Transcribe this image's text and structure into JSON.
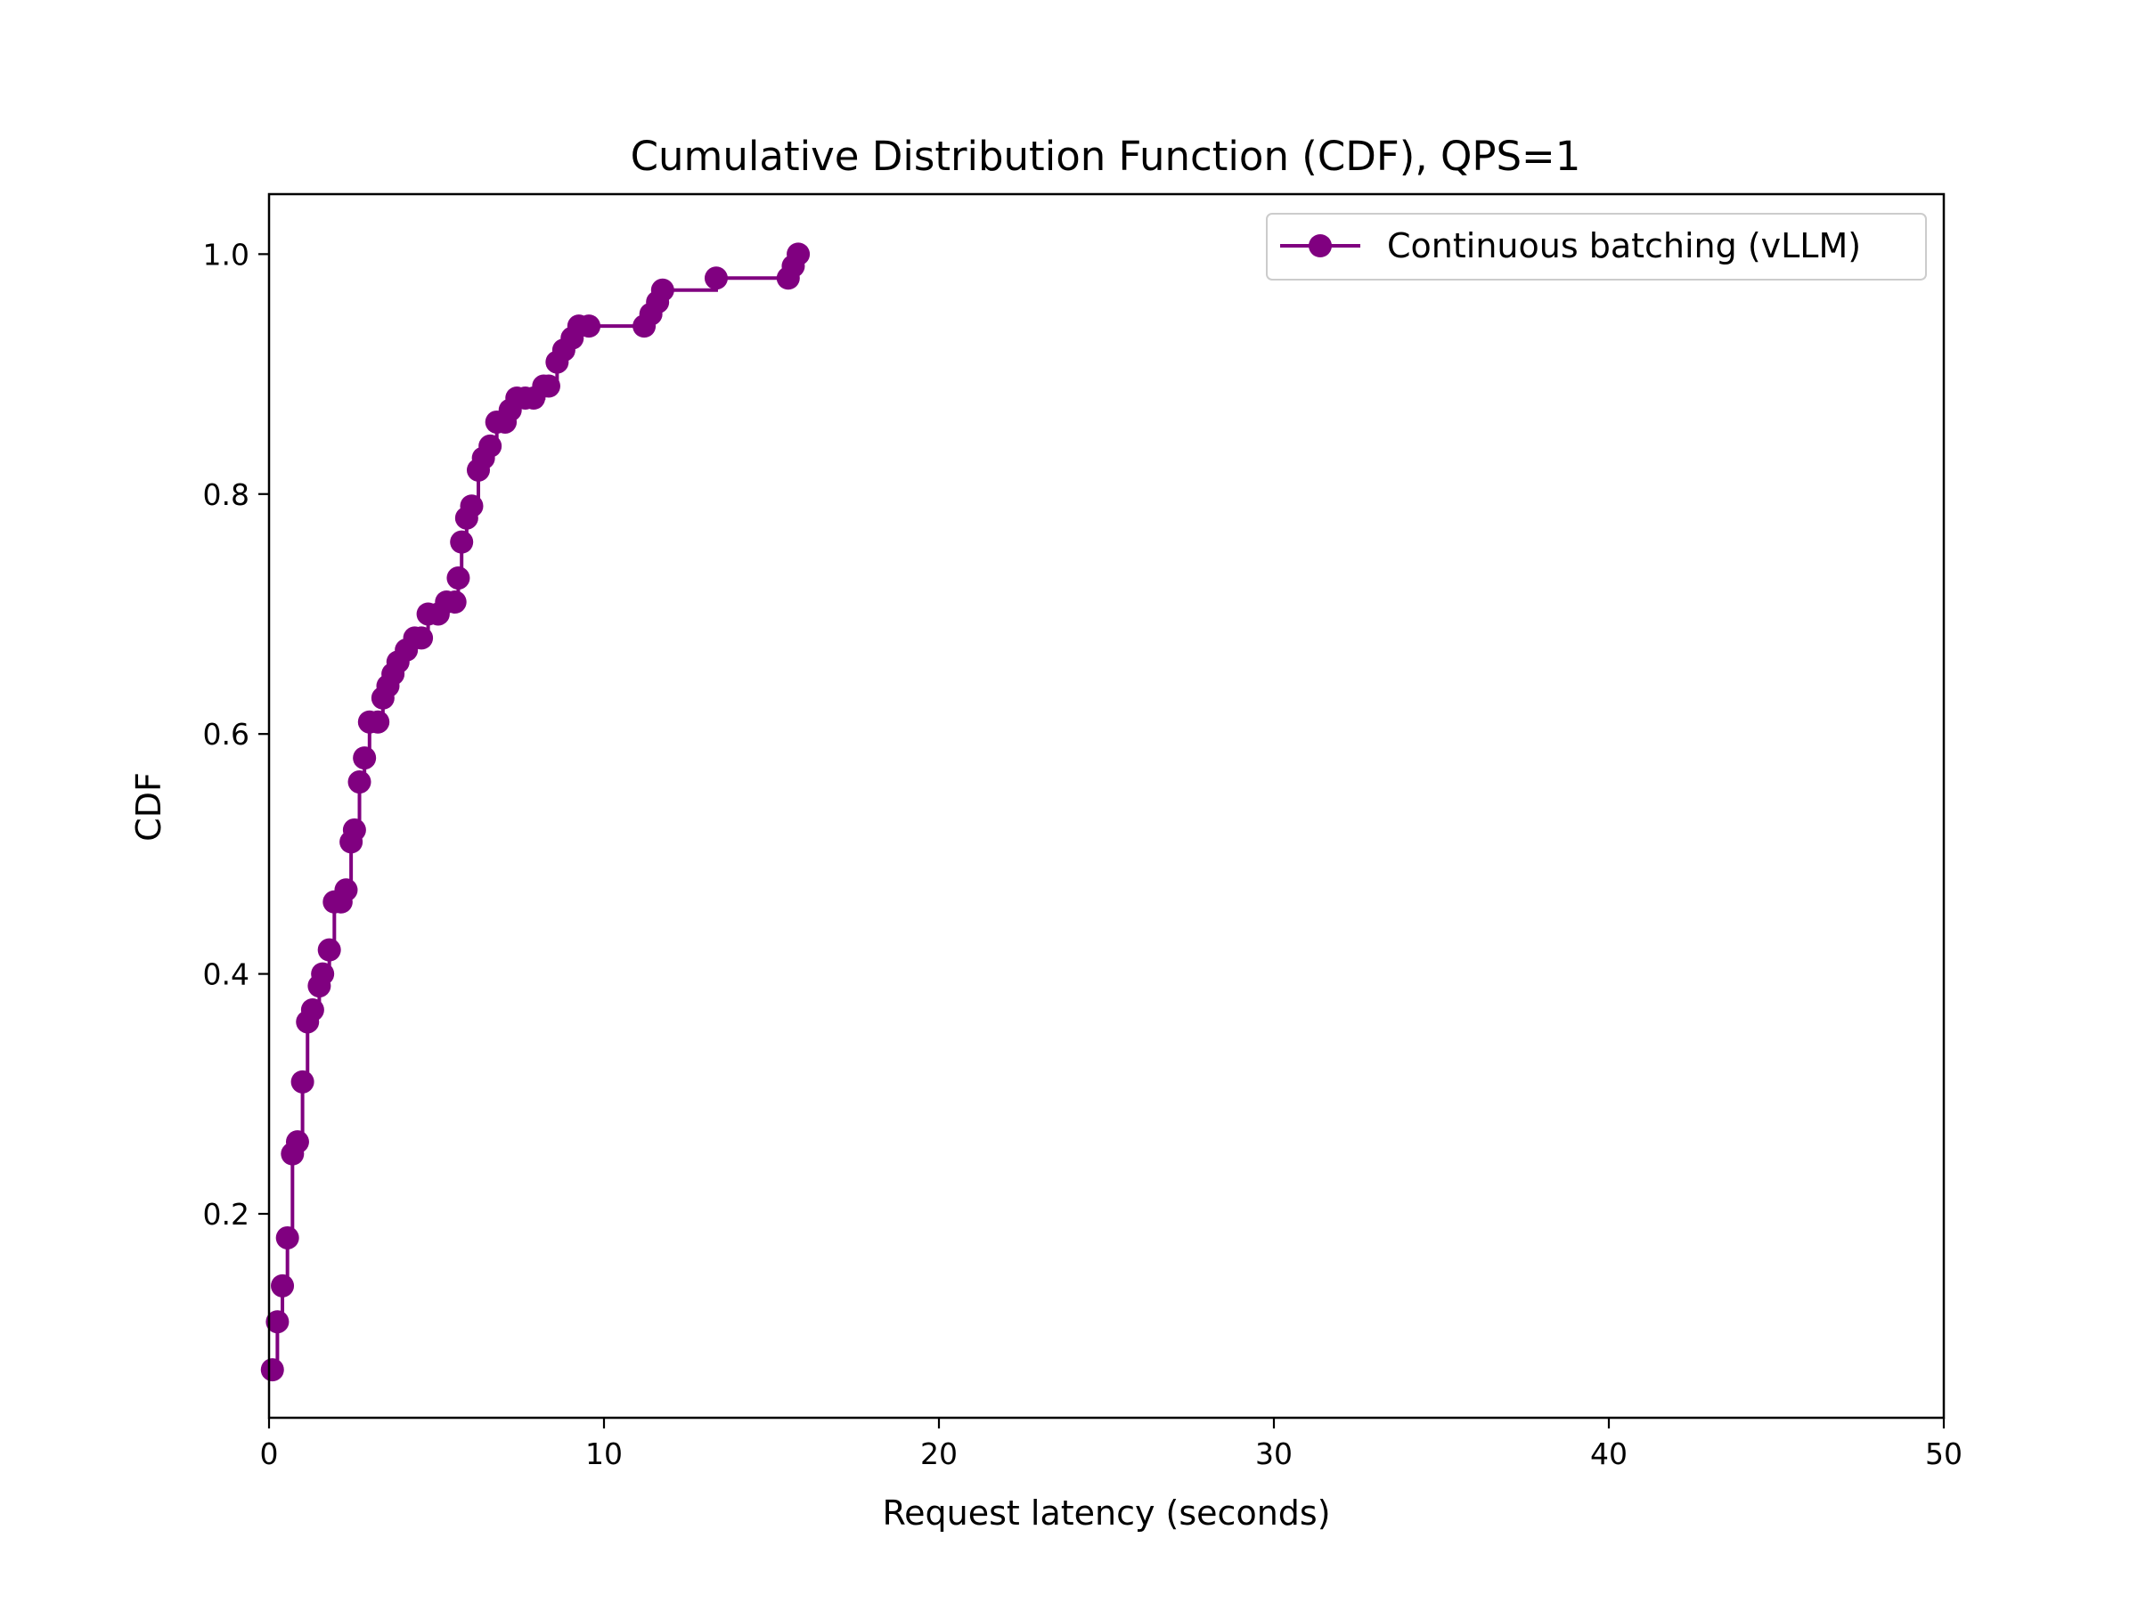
{
  "chart_data": {
    "type": "line",
    "title": "Cumulative Distribution Function (CDF), QPS=1",
    "xlabel": "Request latency (seconds)",
    "ylabel": "CDF",
    "xlim": [
      0,
      50
    ],
    "ylim": [
      0.03,
      1.05
    ],
    "xticks": [
      0,
      10,
      20,
      30,
      40,
      50
    ],
    "xtick_labels": [
      "0",
      "10",
      "20",
      "30",
      "40",
      "50"
    ],
    "yticks": [
      0.2,
      0.4,
      0.6,
      0.8,
      1.0
    ],
    "ytick_labels": [
      "0.2",
      "0.4",
      "0.6",
      "0.8",
      "1.0"
    ],
    "grid": false,
    "legend_position": "top-right",
    "color": "#800080",
    "step": "post",
    "series": [
      {
        "name": "Continuous batching (vLLM)",
        "x": [
          0.1,
          0.25,
          0.4,
          0.55,
          0.7,
          0.85,
          1.0,
          1.15,
          1.3,
          1.5,
          1.6,
          1.8,
          1.95,
          2.15,
          2.3,
          2.45,
          2.55,
          2.7,
          2.85,
          3.0,
          3.25,
          3.4,
          3.55,
          3.7,
          3.85,
          4.1,
          4.35,
          4.55,
          4.75,
          5.05,
          5.3,
          5.55,
          5.65,
          5.75,
          5.9,
          6.05,
          6.25,
          6.4,
          6.6,
          6.8,
          7.05,
          7.2,
          7.4,
          7.65,
          7.9,
          8.2,
          8.35,
          8.6,
          8.8,
          9.05,
          9.25,
          9.55,
          11.2,
          11.4,
          11.6,
          11.75,
          13.35,
          15.5,
          15.65,
          15.8
        ],
        "y": [
          0.07,
          0.11,
          0.14,
          0.18,
          0.25,
          0.26,
          0.31,
          0.36,
          0.37,
          0.39,
          0.4,
          0.42,
          0.46,
          0.46,
          0.47,
          0.51,
          0.52,
          0.56,
          0.58,
          0.61,
          0.61,
          0.63,
          0.64,
          0.65,
          0.66,
          0.67,
          0.68,
          0.68,
          0.7,
          0.7,
          0.71,
          0.71,
          0.73,
          0.76,
          0.78,
          0.79,
          0.82,
          0.83,
          0.84,
          0.86,
          0.86,
          0.87,
          0.88,
          0.88,
          0.88,
          0.89,
          0.89,
          0.91,
          0.92,
          0.93,
          0.94,
          0.94,
          0.94,
          0.95,
          0.96,
          0.97,
          0.98,
          0.98,
          0.99,
          1.0
        ]
      }
    ]
  }
}
